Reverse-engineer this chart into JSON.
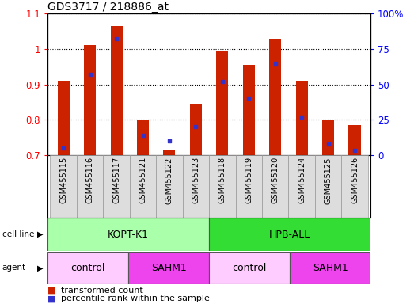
{
  "title": "GDS3717 / 218886_at",
  "samples": [
    "GSM455115",
    "GSM455116",
    "GSM455117",
    "GSM455121",
    "GSM455122",
    "GSM455123",
    "GSM455118",
    "GSM455119",
    "GSM455120",
    "GSM455124",
    "GSM455125",
    "GSM455126"
  ],
  "transformed_counts": [
    0.91,
    1.01,
    1.065,
    0.8,
    0.715,
    0.845,
    0.995,
    0.955,
    1.03,
    0.91,
    0.8,
    0.785
  ],
  "percentile_ranks": [
    5,
    57,
    82,
    14,
    10,
    20,
    52,
    40,
    65,
    27,
    8,
    3
  ],
  "ylim_left": [
    0.7,
    1.1
  ],
  "ylim_right": [
    0,
    100
  ],
  "bar_color": "#cc2200",
  "dot_color": "#3333cc",
  "bar_bottom": 0.7,
  "cell_lines": [
    {
      "label": "KOPT-K1",
      "start": 0,
      "end": 6,
      "color": "#aaffaa"
    },
    {
      "label": "HPB-ALL",
      "start": 6,
      "end": 12,
      "color": "#33dd33"
    }
  ],
  "agents": [
    {
      "label": "control",
      "start": 0,
      "end": 3,
      "color": "#ffccff"
    },
    {
      "label": "SAHM1",
      "start": 3,
      "end": 6,
      "color": "#ee44ee"
    },
    {
      "label": "control",
      "start": 6,
      "end": 9,
      "color": "#ffccff"
    },
    {
      "label": "SAHM1",
      "start": 9,
      "end": 12,
      "color": "#ee44ee"
    }
  ],
  "legend_items": [
    {
      "label": "transformed count",
      "color": "#cc2200"
    },
    {
      "label": "percentile rank within the sample",
      "color": "#3333cc"
    }
  ],
  "yticks_left": [
    0.7,
    0.8,
    0.9,
    1.0,
    1.1
  ],
  "ytick_labels_left": [
    "0.7",
    "0.8",
    "0.9",
    "1",
    "1.1"
  ],
  "yticks_right": [
    0,
    25,
    50,
    75,
    100
  ],
  "ytick_labels_right": [
    "0",
    "25",
    "50",
    "75",
    "100%"
  ],
  "background_color": "#ffffff",
  "plot_bg_color": "#ffffff",
  "sample_bg_color": "#dddddd"
}
